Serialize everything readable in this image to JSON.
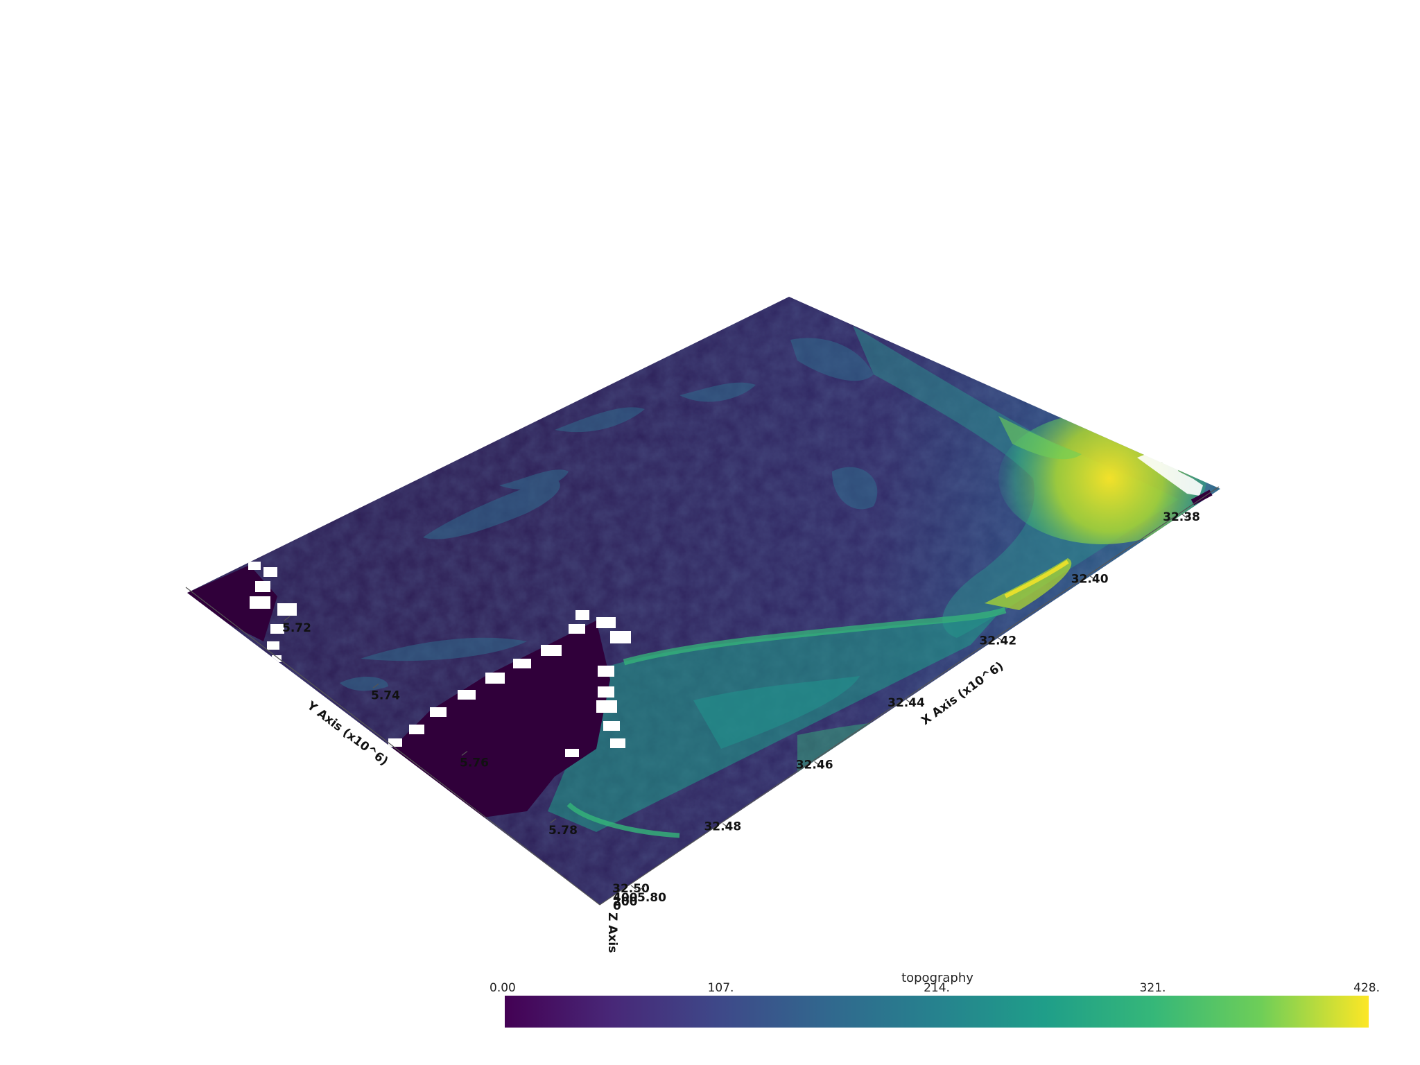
{
  "chart_data": {
    "type": "heatmap",
    "description_kind": "3D terrain surface (elevation colored by viridis colormap)",
    "colormap": "viridis",
    "x_axis": {
      "title": "X Axis (x10^6)",
      "tick_labels": [
        "32.38",
        "32.40",
        "32.42",
        "32.44",
        "32.46",
        "32.48",
        "32.50"
      ]
    },
    "y_axis": {
      "title": "Y Axis (x10^6)",
      "tick_labels": [
        "5.72",
        "5.74",
        "5.76",
        "5.78",
        "5.80"
      ]
    },
    "z_axis": {
      "title": "Z Axis",
      "tick_labels": [
        "400",
        "200",
        "0"
      ]
    },
    "scalar_bar": {
      "title": "topography",
      "tick_labels": [
        "0.00",
        "107.",
        "214.",
        "321.",
        "428."
      ],
      "range": [
        0,
        428
      ]
    },
    "colors": {
      "low": "#440154",
      "mid": "#21918c",
      "high": "#fde725",
      "nodata": "#30003a"
    }
  }
}
